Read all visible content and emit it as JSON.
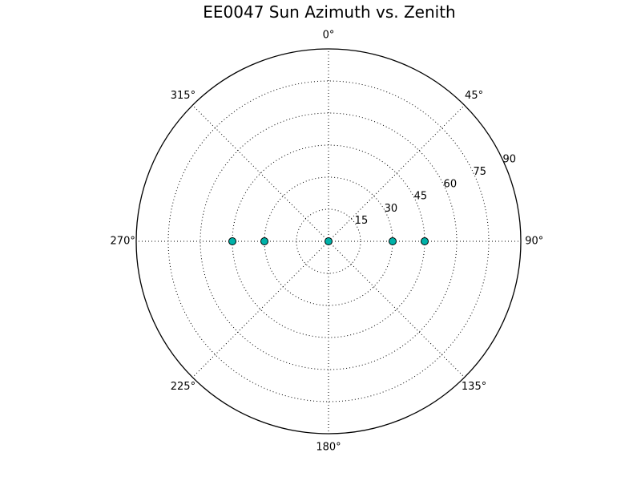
{
  "chart_data": {
    "type": "scatter",
    "projection": "polar",
    "title": "EE0047 Sun Azimuth vs. Zenith",
    "theta_direction": "clockwise",
    "theta_zero": "top",
    "theta_tick_labels": [
      "0°",
      "45°",
      "90°",
      "135°",
      "180°",
      "225°",
      "270°",
      "315°"
    ],
    "theta_ticks": [
      0,
      45,
      90,
      135,
      180,
      225,
      270,
      315
    ],
    "r_tick_labels": [
      "15",
      "30",
      "45",
      "60",
      "75",
      "90"
    ],
    "r_ticks": [
      15,
      30,
      45,
      60,
      75,
      90
    ],
    "rlim": [
      0,
      90
    ],
    "grid": true,
    "marker": "circle",
    "marker_color": "#00b2a9",
    "series": [
      {
        "points": [
          {
            "azimuth": 0,
            "zenith": 0
          },
          {
            "azimuth": 90,
            "zenith": 30
          },
          {
            "azimuth": 90,
            "zenith": 45
          },
          {
            "azimuth": 270,
            "zenith": 30
          },
          {
            "azimuth": 270,
            "zenith": 45
          }
        ]
      }
    ]
  }
}
